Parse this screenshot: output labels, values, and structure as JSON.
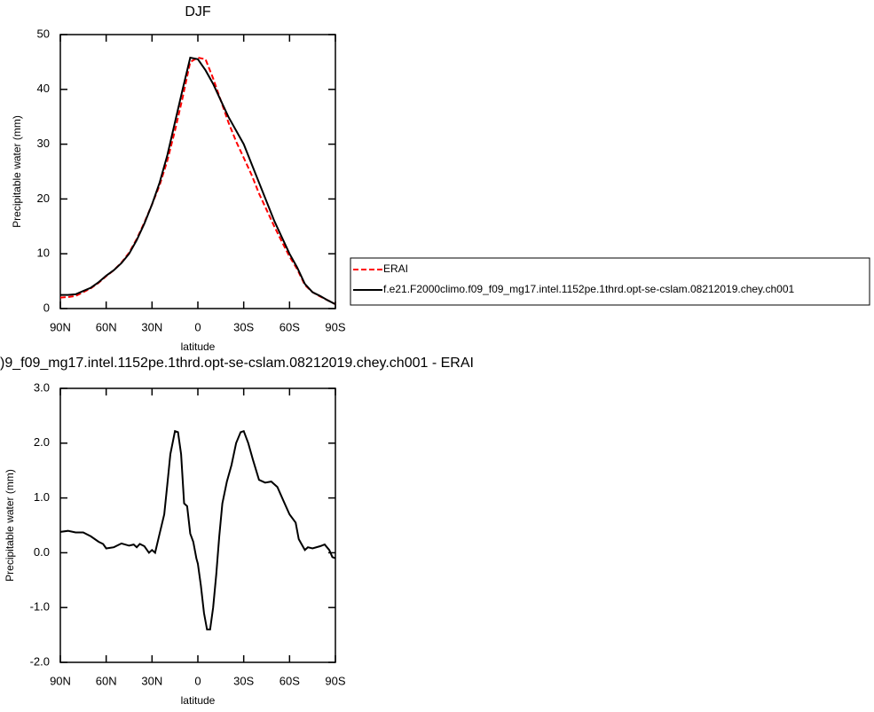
{
  "chart_data": [
    {
      "type": "line",
      "title": "DJF",
      "xlabel": "latitude",
      "ylabel": "Precipitable water (mm)",
      "x": [
        90,
        85,
        80,
        75,
        70,
        65,
        60,
        55,
        50,
        45,
        40,
        35,
        30,
        25,
        20,
        15,
        10,
        5,
        0,
        -5,
        -10,
        -15,
        -20,
        -25,
        -30,
        -35,
        -40,
        -45,
        -50,
        -55,
        -60,
        -65,
        -70,
        -75,
        -80,
        -85,
        -90
      ],
      "xlim": [
        90,
        -90
      ],
      "xticks": [
        {
          "value": 90,
          "label": "90N"
        },
        {
          "value": 60,
          "label": "60N"
        },
        {
          "value": 30,
          "label": "30N"
        },
        0,
        {
          "value": -30,
          "label": "30S"
        },
        {
          "value": -60,
          "label": "60S"
        },
        {
          "value": -90,
          "label": "90S"
        }
      ],
      "ylim": [
        0,
        50
      ],
      "yticks": [
        0,
        10,
        20,
        30,
        40,
        50
      ],
      "legend": "right",
      "series": [
        {
          "name": "ERAI",
          "color": "#ff0000",
          "line_style": "dashed",
          "values": [
            2.0,
            2.1,
            2.3,
            3.0,
            3.7,
            4.7,
            5.9,
            7.0,
            8.4,
            10.2,
            12.7,
            15.7,
            19.0,
            22.5,
            27.0,
            32.5,
            38.5,
            45.0,
            45.8,
            45.5,
            42.0,
            38.0,
            34.0,
            30.5,
            27.5,
            24.5,
            21.0,
            18.0,
            15.0,
            12.2,
            9.5,
            7.2,
            4.3,
            3.0,
            2.2,
            1.5,
            0.8
          ]
        },
        {
          "name": "f.e21.F2000climo.f09_f09_mg17.intel.1152pe.1thrd.opt-se-cslam.08212019.chey.ch001",
          "color": "#000000",
          "line_style": "solid",
          "values": [
            2.5,
            2.5,
            2.6,
            3.2,
            3.8,
            4.8,
            6.0,
            7.0,
            8.3,
            10.0,
            12.5,
            15.5,
            19.0,
            23.0,
            28.0,
            34.0,
            40.0,
            45.8,
            45.5,
            43.5,
            41.0,
            38.0,
            35.0,
            32.5,
            30.0,
            26.5,
            23.0,
            19.5,
            16.0,
            13.0,
            10.0,
            7.5,
            4.5,
            3.0,
            2.3,
            1.5,
            0.8
          ]
        }
      ]
    },
    {
      "type": "line",
      "title": ")9_f09_mg17.intel.1152pe.1thrd.opt-se-cslam.08212019.chey.ch001 - ERAI",
      "xlabel": "latitude",
      "ylabel": "Precipitable water (mm)",
      "x": [
        90,
        85,
        80,
        75,
        70,
        65,
        62,
        60,
        55,
        50,
        45,
        42,
        40,
        38,
        35,
        32,
        30,
        28,
        25,
        22,
        20,
        18,
        15,
        13,
        11,
        9,
        7,
        5,
        3,
        1,
        0,
        -2,
        -4,
        -6,
        -8,
        -10,
        -12,
        -14,
        -16,
        -19,
        -22,
        -25,
        -28,
        -30,
        -33,
        -36,
        -40,
        -44,
        -48,
        -52,
        -56,
        -60,
        -64,
        -66,
        -68,
        -70,
        -72,
        -75,
        -80,
        -83,
        -86,
        -88,
        -90
      ],
      "xlim": [
        90,
        -90
      ],
      "xticks": [
        {
          "value": 90,
          "label": "90N"
        },
        {
          "value": 60,
          "label": "60N"
        },
        {
          "value": 30,
          "label": "30N"
        },
        0,
        {
          "value": -30,
          "label": "30S"
        },
        {
          "value": -60,
          "label": "60S"
        },
        {
          "value": -90,
          "label": "90S"
        }
      ],
      "ylim": [
        -2,
        3
      ],
      "yticks": [
        {
          "value": -2,
          "label": "-2.0"
        },
        {
          "value": -1,
          "label": "-1.0"
        },
        {
          "value": 0,
          "label": "0.0"
        },
        {
          "value": 1,
          "label": "1.0"
        },
        {
          "value": 2,
          "label": "2.0"
        },
        {
          "value": 3,
          "label": "3.0"
        }
      ],
      "series": [
        {
          "color": "#000000",
          "line_style": "solid",
          "values": [
            0.38,
            0.4,
            0.37,
            0.37,
            0.3,
            0.2,
            0.16,
            0.08,
            0.1,
            0.17,
            0.13,
            0.15,
            0.1,
            0.16,
            0.12,
            0.0,
            0.05,
            0.0,
            0.35,
            0.7,
            1.25,
            1.8,
            2.22,
            2.2,
            1.8,
            0.9,
            0.85,
            0.35,
            0.2,
            -0.1,
            -0.2,
            -0.6,
            -1.1,
            -1.4,
            -1.4,
            -1.0,
            -0.4,
            0.3,
            0.9,
            1.3,
            1.6,
            2.0,
            2.2,
            2.22,
            2.0,
            1.7,
            1.33,
            1.28,
            1.3,
            1.2,
            0.95,
            0.7,
            0.55,
            0.25,
            0.15,
            0.05,
            0.1,
            0.08,
            0.12,
            0.15,
            0.05,
            -0.08,
            -0.1
          ]
        }
      ]
    }
  ]
}
